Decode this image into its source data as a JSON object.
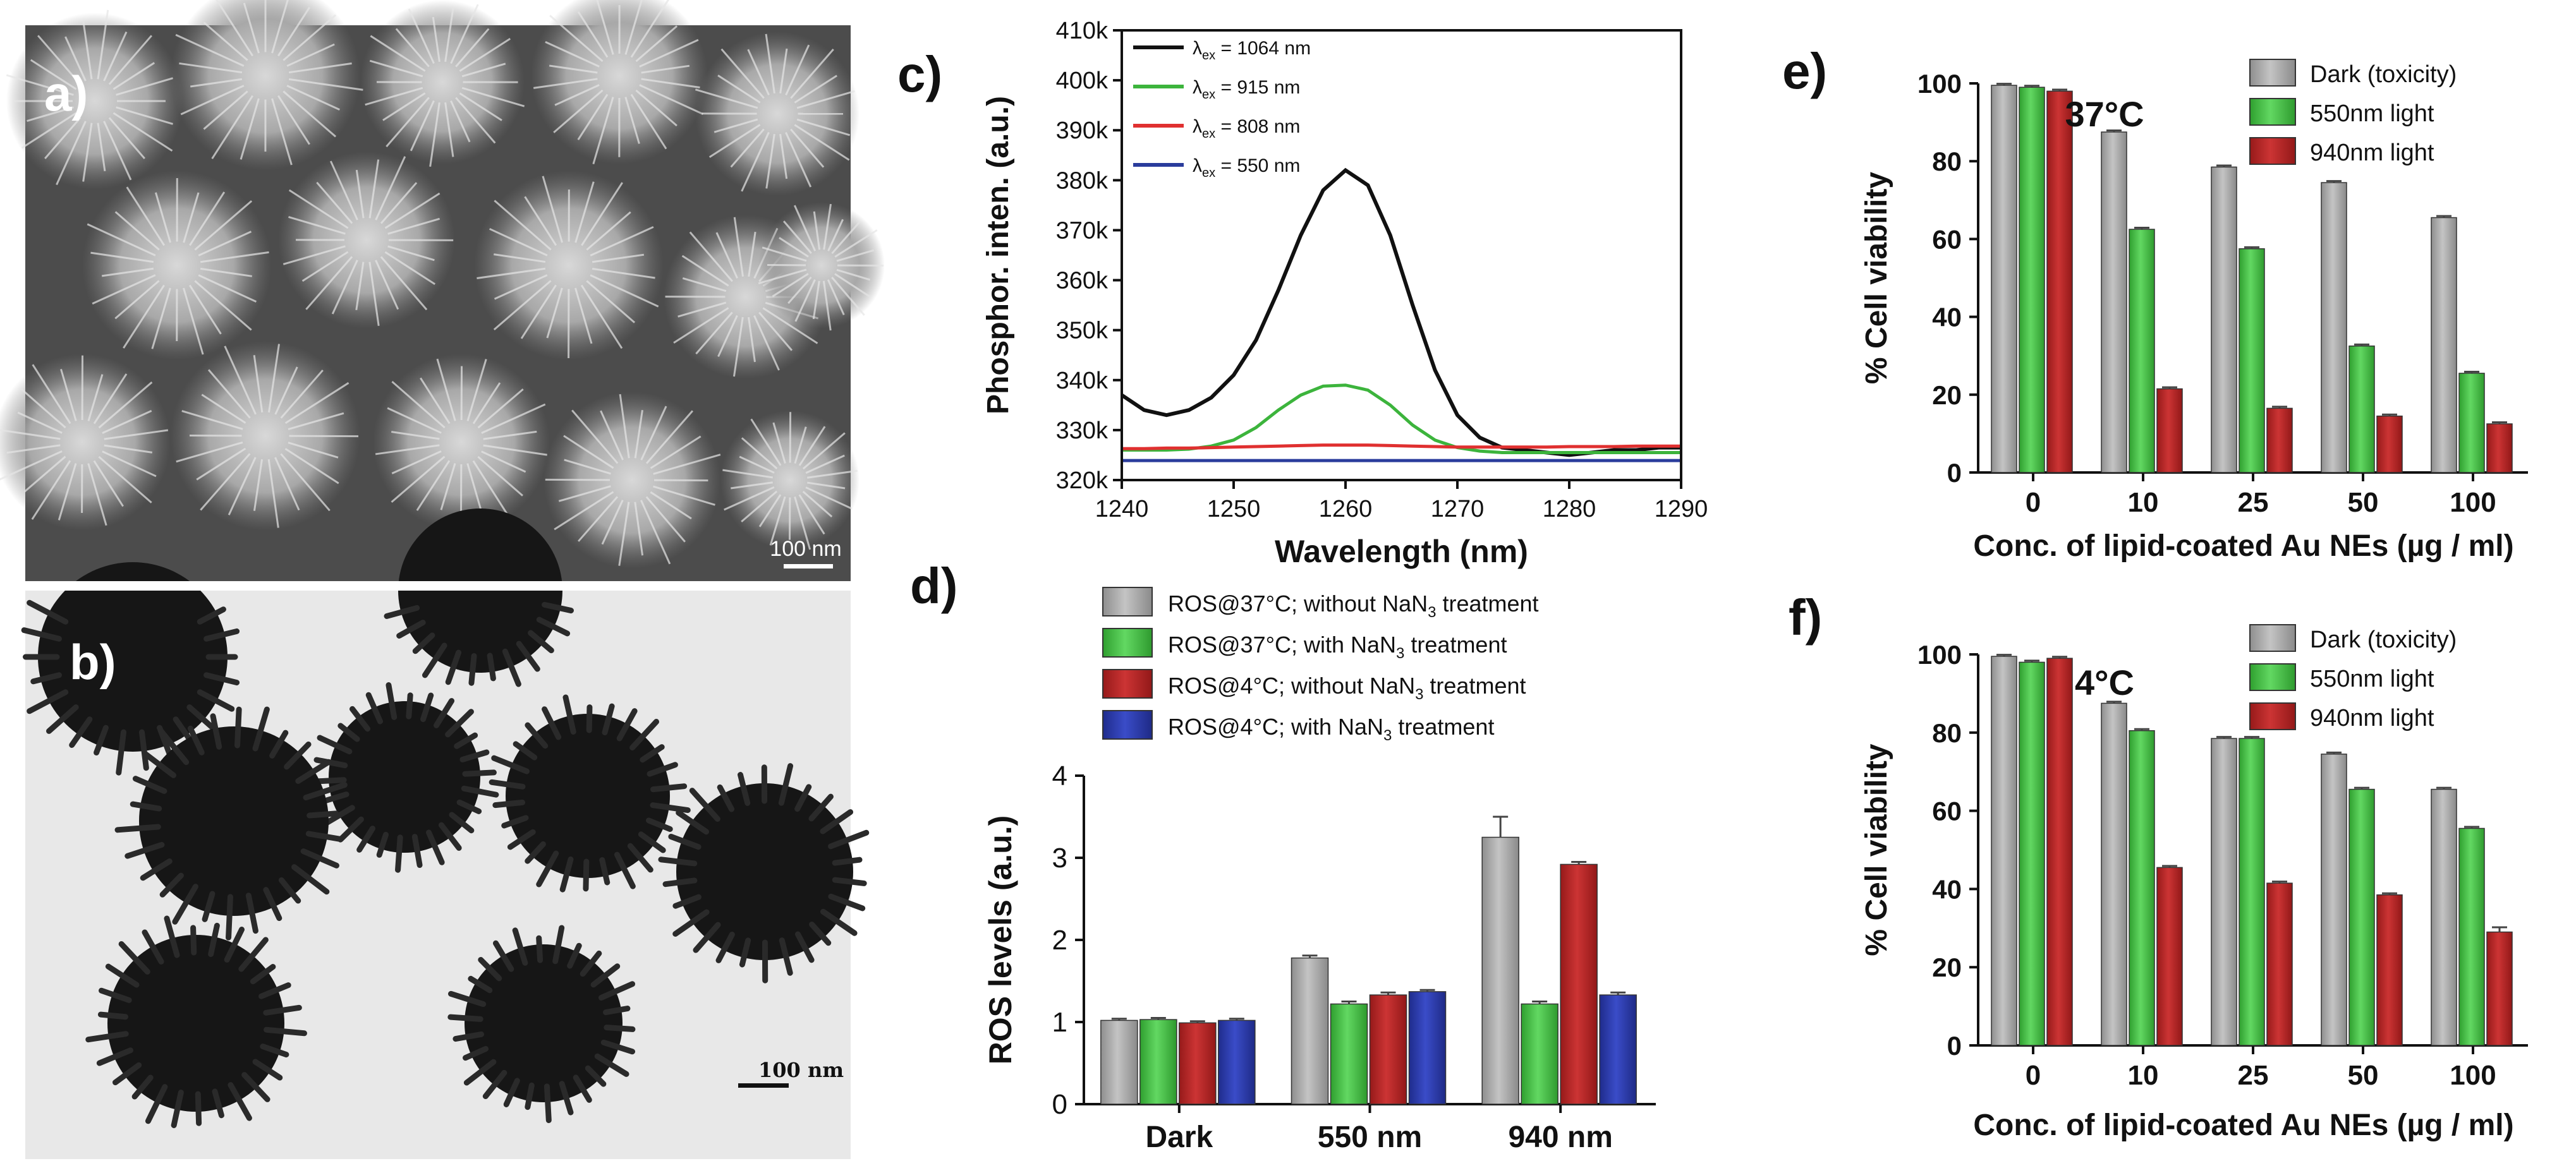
{
  "panels": {
    "a": {
      "label": "a)",
      "scalebar": "100 nm"
    },
    "b": {
      "label": "b)",
      "scalebar": "100 nm"
    },
    "c": {
      "label": "c)"
    },
    "d": {
      "label": "d)"
    },
    "e": {
      "label": "e)"
    },
    "f": {
      "label": "f)"
    }
  },
  "colors": {
    "black": "#111111",
    "green": "#3cb43c",
    "red": "#e03030",
    "blue": "#2a3c9c",
    "gray": "#a0a0a0",
    "barGreen": "#44c044",
    "barRed": "#b22222",
    "barBlue": "#2b3aa8"
  },
  "chart_data": [
    {
      "id": "c",
      "type": "line",
      "title": "",
      "xlabel": "Wavelength (nm)",
      "ylabel": "Phosphor. inten. (a.u.)",
      "xlim": [
        1240,
        1290
      ],
      "ylim": [
        320000,
        410000
      ],
      "xticks": [
        1240,
        1250,
        1260,
        1270,
        1280,
        1290
      ],
      "yticks": [
        320000,
        330000,
        340000,
        350000,
        360000,
        370000,
        380000,
        390000,
        400000,
        410000
      ],
      "ytick_labels": [
        "320k",
        "330k",
        "340k",
        "350k",
        "360k",
        "370k",
        "380k",
        "390k",
        "400k",
        "410k"
      ],
      "x": [
        1240,
        1242,
        1244,
        1246,
        1248,
        1250,
        1252,
        1254,
        1256,
        1258,
        1260,
        1262,
        1264,
        1266,
        1268,
        1270,
        1272,
        1274,
        1276,
        1278,
        1280,
        1282,
        1284,
        1286,
        1288,
        1290
      ],
      "series": [
        {
          "name": "λex = 1064 nm",
          "colorKey": "black",
          "values": [
            337000,
            334000,
            333000,
            334000,
            336500,
            341000,
            348000,
            358000,
            369000,
            378000,
            382000,
            379000,
            369000,
            355000,
            342000,
            333000,
            328500,
            326500,
            326000,
            325500,
            325000,
            325500,
            326000,
            326000,
            326500,
            326500
          ]
        },
        {
          "name": "λex = 915 nm",
          "colorKey": "green",
          "values": [
            326000,
            326000,
            326000,
            326200,
            326800,
            328000,
            330500,
            334000,
            337000,
            338800,
            339000,
            338000,
            335000,
            331000,
            328000,
            326500,
            325800,
            325500,
            325500,
            325500,
            325500,
            325500,
            325500,
            325500,
            325500,
            325500
          ]
        },
        {
          "name": "λex = 808 nm",
          "colorKey": "red",
          "values": [
            326300,
            326300,
            326400,
            326400,
            326500,
            326600,
            326700,
            326800,
            326900,
            327000,
            327000,
            327000,
            326900,
            326800,
            326700,
            326600,
            326600,
            326600,
            326600,
            326600,
            326700,
            326700,
            326700,
            326800,
            326800,
            326800
          ]
        },
        {
          "name": "λex = 550 nm",
          "colorKey": "blue",
          "values": [
            323900,
            323900,
            323900,
            323900,
            323900,
            323900,
            323900,
            323900,
            323900,
            323900,
            323900,
            323900,
            323900,
            323900,
            323900,
            323900,
            323900,
            323900,
            323900,
            323900,
            323900,
            323900,
            323900,
            323900,
            323900,
            323900
          ]
        }
      ],
      "legend": {
        "placement": "top-left",
        "entries": [
          {
            "prefix": "λ",
            "sub": "ex",
            "text": " = 1064 nm",
            "colorKey": "black"
          },
          {
            "prefix": "λ",
            "sub": "ex",
            "text": " = 915 nm",
            "colorKey": "green"
          },
          {
            "prefix": "λ",
            "sub": "ex",
            "text": " = 808 nm",
            "colorKey": "red"
          },
          {
            "prefix": "λ",
            "sub": "ex",
            "text": " = 550 nm",
            "colorKey": "blue"
          }
        ]
      }
    },
    {
      "id": "d",
      "type": "bar",
      "xlabel": "",
      "ylabel": "ROS levels (a.u.)",
      "ylim": [
        0,
        4
      ],
      "yticks": [
        0,
        1,
        2,
        3,
        4
      ],
      "categories": [
        "Dark",
        "550 nm",
        "940 nm"
      ],
      "series": [
        {
          "name": "ROS@37°C; without NaN3 treatment",
          "colorKey": "gray",
          "values": [
            1.02,
            1.78,
            3.25
          ],
          "errors": [
            0.02,
            0.03,
            0.25
          ]
        },
        {
          "name": "ROS@37°C; with NaN3 treatment",
          "colorKey": "barGreen",
          "values": [
            1.03,
            1.22,
            1.22
          ],
          "errors": [
            0.02,
            0.03,
            0.03
          ]
        },
        {
          "name": "ROS@4°C; without NaN3 treatment",
          "colorKey": "barRed",
          "values": [
            0.99,
            1.33,
            2.92
          ],
          "errors": [
            0.02,
            0.03,
            0.03
          ]
        },
        {
          "name": "ROS@4°C; with NaN3 treatment",
          "colorKey": "barBlue",
          "values": [
            1.02,
            1.37,
            1.33
          ],
          "errors": [
            0.02,
            0.02,
            0.03
          ]
        }
      ],
      "legend": {
        "placement": "top",
        "entries": [
          {
            "a": "ROS@37°C; without NaN",
            "sub": "3",
            "b": " treatment",
            "colorKey": "gray"
          },
          {
            "a": "ROS@37°C; with NaN",
            "sub": "3",
            "b": " treatment",
            "colorKey": "barGreen"
          },
          {
            "a": "ROS@4°C; without NaN",
            "sub": "3",
            "b": " treatment",
            "colorKey": "barRed"
          },
          {
            "a": "ROS@4°C; with NaN",
            "sub": "3",
            "b": " treatment",
            "colorKey": "barBlue"
          }
        ]
      }
    },
    {
      "id": "e",
      "type": "bar",
      "annotation": "37°C",
      "xlabel": "Conc. of lipid-coated Au NEs (µg / ml)",
      "ylabel": "% Cell viability",
      "ylim": [
        0,
        100
      ],
      "yticks": [
        0,
        20,
        40,
        60,
        80,
        100
      ],
      "categories": [
        "0",
        "10",
        "25",
        "50",
        "100"
      ],
      "series": [
        {
          "name": "Dark (toxicity)",
          "colorKey": "gray",
          "values": [
            99.5,
            87.5,
            78.5,
            74.5,
            65.5
          ],
          "errors": [
            0.4,
            0.4,
            0.4,
            0.4,
            0.4
          ]
        },
        {
          "name": "550nm light",
          "colorKey": "barGreen",
          "values": [
            99,
            62.5,
            57.5,
            32.5,
            25.5
          ],
          "errors": [
            0.4,
            0.4,
            0.4,
            0.4,
            0.4
          ]
        },
        {
          "name": "940nm light",
          "colorKey": "barRed",
          "values": [
            98,
            21.5,
            16.5,
            14.5,
            12.5
          ],
          "errors": [
            0.4,
            0.4,
            0.4,
            0.4,
            0.4
          ]
        }
      ],
      "legend": {
        "placement": "top-right"
      }
    },
    {
      "id": "f",
      "type": "bar",
      "annotation": "4°C",
      "xlabel": "Conc. of lipid-coated Au NEs (µg / ml)",
      "ylabel": "% Cell viability",
      "ylim": [
        0,
        100
      ],
      "yticks": [
        0,
        20,
        40,
        60,
        80,
        100
      ],
      "categories": [
        "0",
        "10",
        "25",
        "50",
        "100"
      ],
      "series": [
        {
          "name": "Dark (toxicity)",
          "colorKey": "gray",
          "values": [
            99.5,
            87.5,
            78.5,
            74.5,
            65.5
          ],
          "errors": [
            0.4,
            0.4,
            0.4,
            0.4,
            0.4
          ]
        },
        {
          "name": "550nm light",
          "colorKey": "barGreen",
          "values": [
            98,
            80.5,
            78.5,
            65.5,
            55.5
          ],
          "errors": [
            0.4,
            0.4,
            0.4,
            0.4,
            0.4
          ]
        },
        {
          "name": "940nm light",
          "colorKey": "barRed",
          "values": [
            99,
            45.5,
            41.5,
            38.5,
            29
          ],
          "errors": [
            0.4,
            0.4,
            0.4,
            0.4,
            1.2
          ]
        }
      ],
      "legend": {
        "placement": "top-right"
      }
    }
  ]
}
